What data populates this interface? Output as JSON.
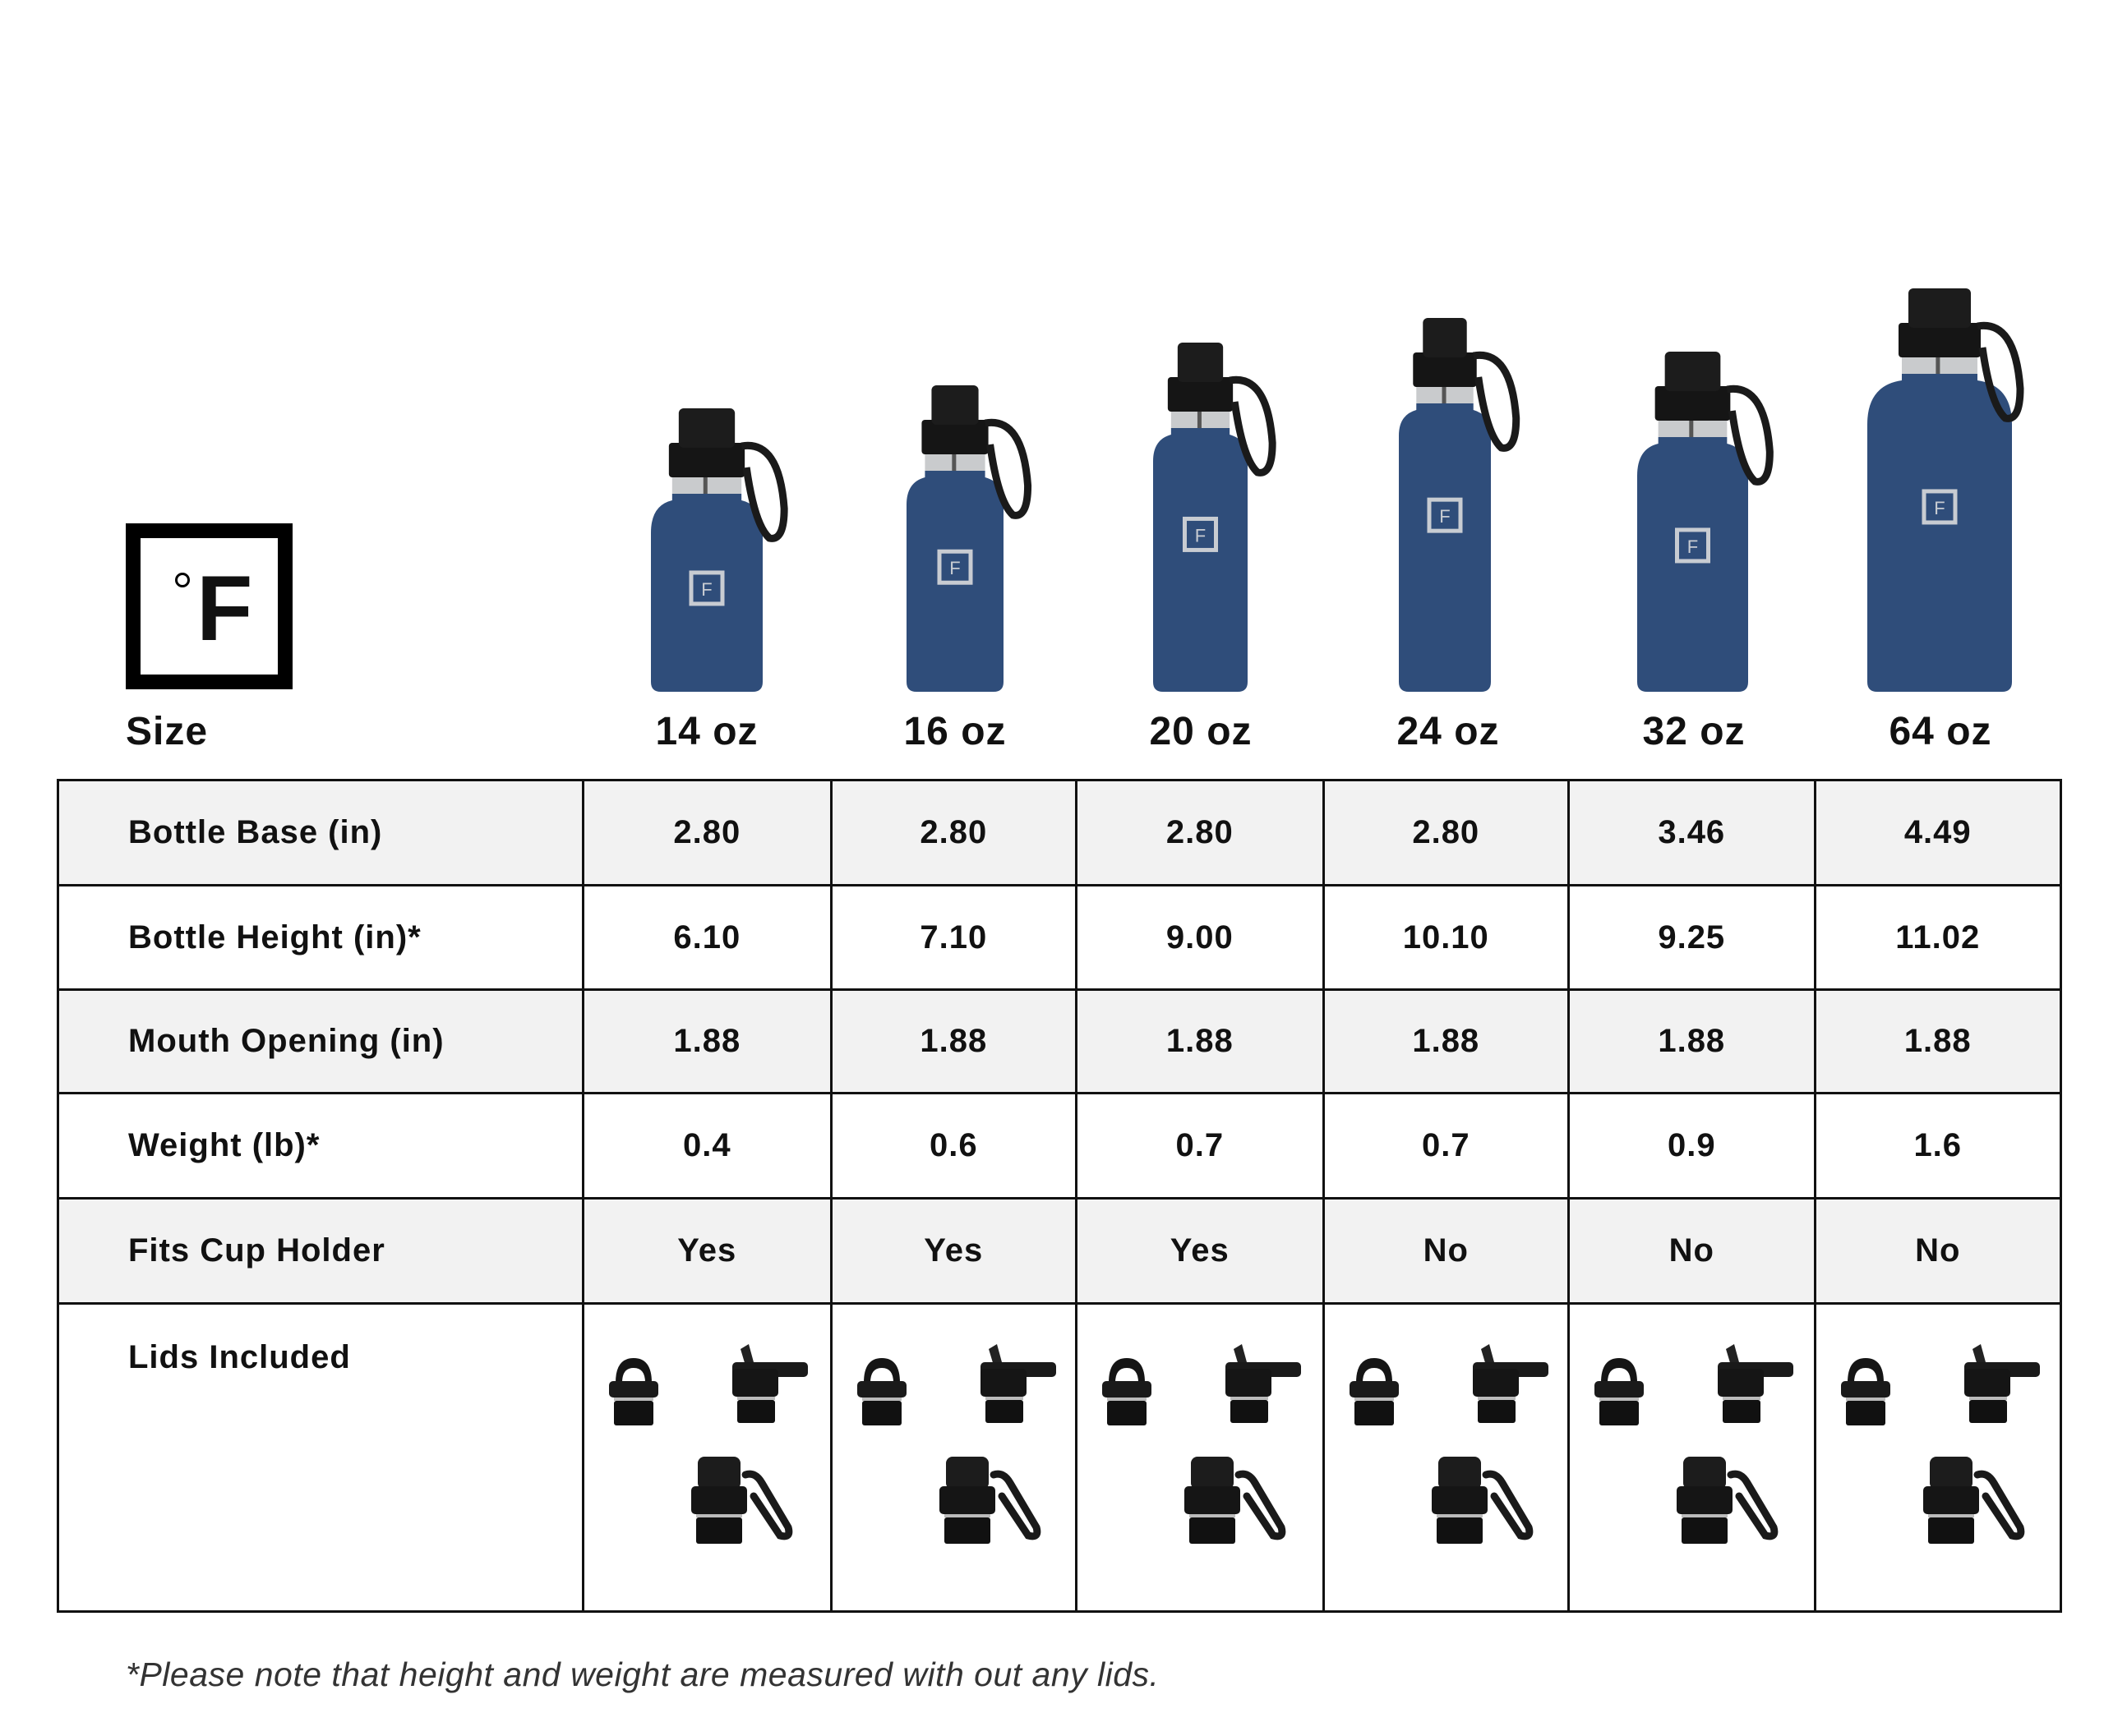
{
  "brand_logo": {
    "symbol": "°F"
  },
  "header": {
    "size_label": "Size",
    "sizes": [
      "14 oz",
      "16 oz",
      "20 oz",
      "24 oz",
      "32 oz",
      "64 oz"
    ]
  },
  "bottle_color": "#2f4d7a",
  "table": {
    "rows": [
      {
        "label": "Bottle Base (in)",
        "values": [
          "2.80",
          "2.80",
          "2.80",
          "2.80",
          "3.46",
          "4.49"
        ]
      },
      {
        "label": "Bottle Height (in)*",
        "values": [
          "6.10",
          "7.10",
          "9.00",
          "10.10",
          "9.25",
          "11.02"
        ]
      },
      {
        "label": "Mouth Opening (in)",
        "values": [
          "1.88",
          "1.88",
          "1.88",
          "1.88",
          "1.88",
          "1.88"
        ]
      },
      {
        "label": "Weight (lb)*",
        "values": [
          "0.4",
          "0.6",
          "0.7",
          "0.7",
          "0.9",
          "1.6"
        ]
      },
      {
        "label": "Fits Cup Holder",
        "values": [
          "Yes",
          "Yes",
          "Yes",
          "No",
          "No",
          "No"
        ]
      }
    ],
    "lids_label": "Lids Included",
    "lids": [
      "loop-cap-icon",
      "straw-lid-icon",
      "spout-lid-icon"
    ]
  },
  "footnote": "*Please note that height and weight are measured with out any lids."
}
